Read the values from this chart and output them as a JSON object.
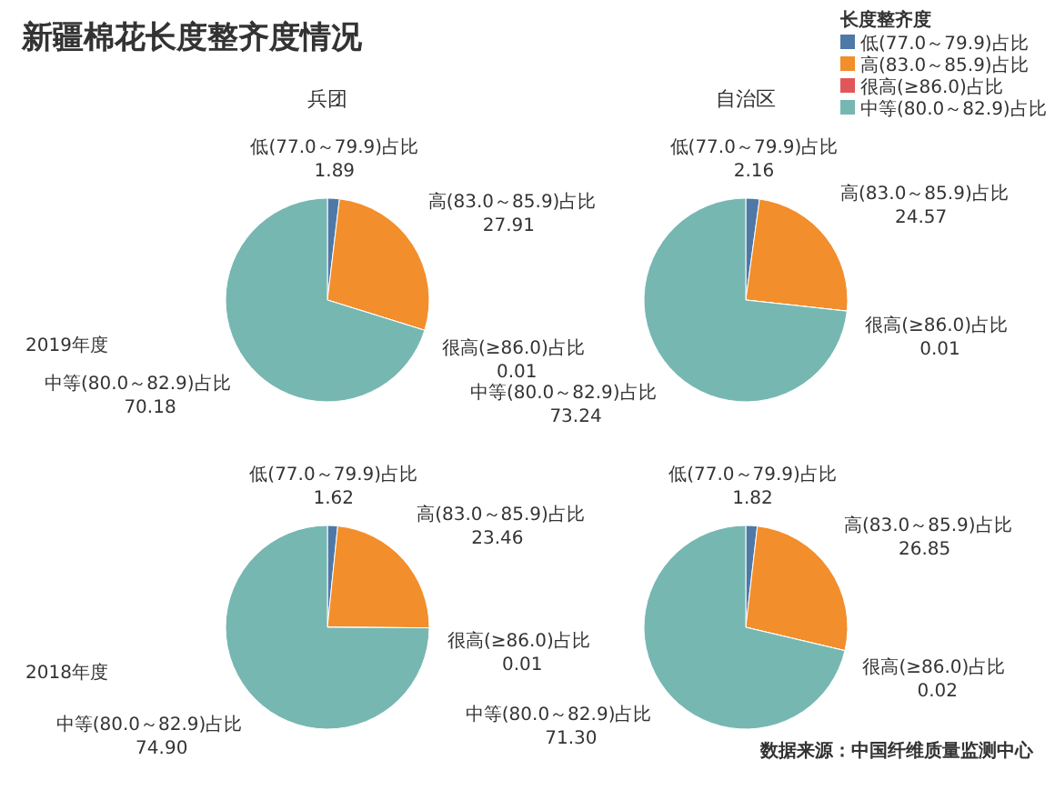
{
  "chart_data": [
    {
      "type": "other",
      "title": "新疆棉花长度整齐度情况",
      "annotations": [
        "数据来源：中国纤维质量监测中心"
      ]
    },
    {
      "type": "pie",
      "title": "兵团",
      "ylabel": "2019年度",
      "categories": [
        "低(77.0～79.9)占比",
        "高(83.0～85.9)占比",
        "很高(≥86.0)占比",
        "中等(80.0～82.9)占比"
      ],
      "values": [
        1.89,
        27.91,
        0.01,
        70.18
      ],
      "value_labels": [
        "1.89",
        "27.91",
        "0.01",
        "70.18"
      ],
      "colors": [
        "#4e79a7",
        "#f28e2b",
        "#e15759",
        "#76b7b2"
      ]
    },
    {
      "type": "pie",
      "title": "自治区",
      "legend": "top right",
      "legend_title": "长度整齐度",
      "categories": [
        "低(77.0～79.9)占比",
        "高(83.0～85.9)占比",
        "很高(≥86.0)占比",
        "中等(80.0～82.9)占比"
      ],
      "values": [
        2.16,
        24.57,
        0.01,
        73.24
      ],
      "value_labels": [
        "2.16",
        "24.57",
        "0.01",
        "73.24"
      ],
      "colors": [
        "#4e79a7",
        "#f28e2b",
        "#e15759",
        "#76b7b2"
      ]
    },
    {
      "type": "pie",
      "ylabel": "2018年度",
      "categories": [
        "低(77.0～79.9)占比",
        "高(83.0～85.9)占比",
        "很高(≥86.0)占比",
        "中等(80.0～82.9)占比"
      ],
      "values": [
        1.62,
        23.46,
        0.01,
        74.9
      ],
      "value_labels": [
        "1.62",
        "23.46",
        "0.01",
        "74.90"
      ],
      "colors": [
        "#4e79a7",
        "#f28e2b",
        "#e15759",
        "#76b7b2"
      ]
    },
    {
      "type": "pie",
      "categories": [
        "低(77.0～79.9)占比",
        "高(83.0～85.9)占比",
        "很高(≥86.0)占比",
        "中等(80.0～82.9)占比"
      ],
      "values": [
        1.82,
        26.85,
        0.02,
        71.3
      ],
      "value_labels": [
        "1.82",
        "26.85",
        "0.02",
        "71.30"
      ],
      "colors": [
        "#4e79a7",
        "#f28e2b",
        "#e15759",
        "#76b7b2"
      ]
    }
  ]
}
